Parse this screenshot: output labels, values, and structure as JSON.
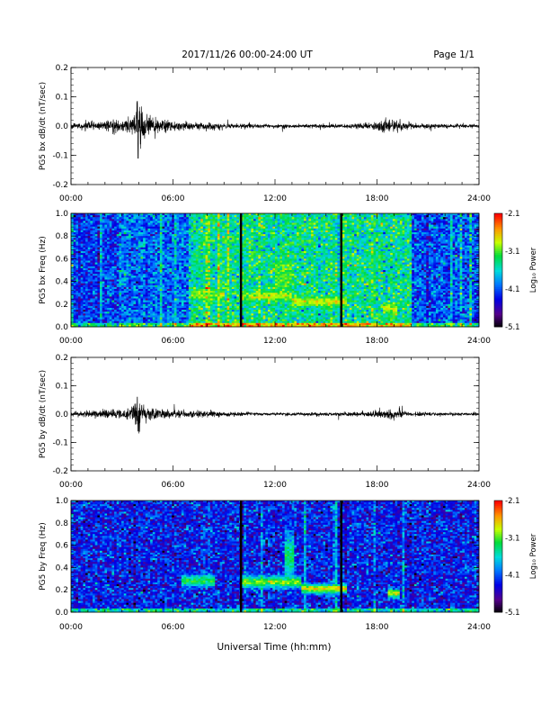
{
  "header": {
    "title": "2017/11/26  00:00-24:00 UT",
    "page_label": "Page 1/1"
  },
  "x_axis_label": "Universal Time (hh:mm)",
  "chart_data": [
    {
      "id": "bx_timeseries",
      "type": "line",
      "ylabel": "PG5 bx dB/dt (nT/sec)",
      "x_ticks": [
        "00:00",
        "06:00",
        "12:00",
        "18:00",
        "24:00"
      ],
      "y_ticks": [
        "0.2",
        "0.1",
        "0.0",
        "-0.1",
        "-0.2"
      ],
      "xlim": [
        0,
        24
      ],
      "ylim": [
        -0.2,
        0.2
      ],
      "series": [
        {
          "x": [
            0,
            1,
            2,
            2.5,
            3,
            3.5,
            3.8,
            4.0,
            4.3,
            5,
            6,
            7,
            8,
            9,
            10,
            12,
            14,
            16,
            17.5,
            18,
            18.5,
            19.5,
            20,
            22,
            24
          ],
          "envelope": [
            0.007,
            0.012,
            0.014,
            0.02,
            0.018,
            0.024,
            0.05,
            0.085,
            0.03,
            0.02,
            0.016,
            0.012,
            0.01,
            0.009,
            0.007,
            0.005,
            0.006,
            0.007,
            0.01,
            0.014,
            0.022,
            0.012,
            0.008,
            0.006,
            0.005
          ],
          "minimum": {
            "x": 3.95,
            "y": -0.11
          },
          "maximum": {
            "x": 3.9,
            "y": 0.085
          }
        }
      ]
    },
    {
      "id": "bx_spectrogram",
      "type": "heatmap",
      "ylabel": "PG5 bx Freq (Hz)",
      "x_ticks": [
        "00:00",
        "06:00",
        "12:00",
        "18:00",
        "24:00"
      ],
      "y_ticks": [
        "1.0",
        "0.8",
        "0.6",
        "0.4",
        "0.2",
        "0.0"
      ],
      "xlim": [
        0,
        24
      ],
      "ylim": [
        0,
        1.0
      ],
      "colorbar": {
        "label": "Log₁₀ Power",
        "ticks": [
          "-2.1",
          "-3.1",
          "-4.1",
          "-5.1"
        ],
        "range": [
          -5.1,
          -2.1
        ],
        "colormap": "rainbow"
      },
      "background_level": [
        {
          "from": 0,
          "to": 3,
          "level": -4.2
        },
        {
          "from": 3,
          "to": 7,
          "level": -4.0
        },
        {
          "from": 7,
          "to": 20,
          "level": -3.4
        },
        {
          "from": 20,
          "to": 24,
          "level": -4.1
        }
      ],
      "enhancements": [
        {
          "t_start": 7,
          "t_end": 9,
          "f_center": 0.28,
          "f_width": 0.05,
          "level": -3.0
        },
        {
          "t_start": 10,
          "t_end": 13,
          "f_center": 0.27,
          "f_width": 0.04,
          "level": -2.9
        },
        {
          "t_start": 13,
          "t_end": 16.2,
          "f_center": 0.22,
          "f_width": 0.04,
          "level": -2.8
        },
        {
          "t_start": 18.3,
          "t_end": 19.2,
          "f_center": 0.16,
          "f_width": 0.04,
          "level": -2.8
        },
        {
          "t_start": 12,
          "t_end": 13,
          "f_center": 0.45,
          "f_width": 0.15,
          "level": -3.1
        }
      ],
      "data_gaps": [
        10.0,
        15.9
      ]
    },
    {
      "id": "by_timeseries",
      "type": "line",
      "ylabel": "PG5 by dB/dt (nT/sec)",
      "x_ticks": [
        "00:00",
        "06:00",
        "12:00",
        "18:00",
        "24:00"
      ],
      "y_ticks": [
        "0.2",
        "0.1",
        "0.0",
        "-0.1",
        "-0.2"
      ],
      "xlim": [
        0,
        24
      ],
      "ylim": [
        -0.2,
        0.2
      ],
      "series": [
        {
          "x": [
            0,
            1,
            2,
            2.5,
            3,
            3.5,
            3.8,
            4.0,
            4.3,
            5,
            6,
            7,
            8,
            9,
            10,
            12,
            14,
            16,
            17.5,
            18,
            18.5,
            19.5,
            20,
            22,
            24
          ],
          "envelope": [
            0.006,
            0.01,
            0.012,
            0.016,
            0.015,
            0.02,
            0.04,
            0.06,
            0.025,
            0.016,
            0.013,
            0.01,
            0.009,
            0.008,
            0.006,
            0.004,
            0.005,
            0.006,
            0.008,
            0.012,
            0.018,
            0.01,
            0.007,
            0.005,
            0.004
          ],
          "minimum": {
            "x": 3.95,
            "y": -0.06
          },
          "maximum": {
            "x": 3.9,
            "y": 0.06
          }
        }
      ]
    },
    {
      "id": "by_spectrogram",
      "type": "heatmap",
      "ylabel": "PG5 by Freq (Hz)",
      "x_ticks": [
        "00:00",
        "06:00",
        "12:00",
        "18:00",
        "24:00"
      ],
      "y_ticks": [
        "1.0",
        "0.8",
        "0.6",
        "0.4",
        "0.2",
        "0.0"
      ],
      "xlim": [
        0,
        24
      ],
      "ylim": [
        0,
        1.0
      ],
      "colorbar": {
        "label": "Log₁₀ Power",
        "ticks": [
          "-2.1",
          "-3.1",
          "-4.1",
          "-5.1"
        ],
        "range": [
          -5.1,
          -2.1
        ],
        "colormap": "rainbow"
      },
      "background_level": [
        {
          "from": 0,
          "to": 24,
          "level": -4.3
        }
      ],
      "enhancements": [
        {
          "t_start": 6.5,
          "t_end": 8.5,
          "f_center": 0.28,
          "f_width": 0.05,
          "level": -3.2
        },
        {
          "t_start": 10,
          "t_end": 13.5,
          "f_center": 0.27,
          "f_width": 0.05,
          "level": -3.0
        },
        {
          "t_start": 13.5,
          "t_end": 16.2,
          "f_center": 0.21,
          "f_width": 0.04,
          "level": -2.7
        },
        {
          "t_start": 12.5,
          "t_end": 13.2,
          "f_center": 0.5,
          "f_width": 0.2,
          "level": -3.3
        },
        {
          "t_start": 18.7,
          "t_end": 19.3,
          "f_center": 0.17,
          "f_width": 0.04,
          "level": -2.8
        }
      ],
      "data_gaps": [
        10.0,
        15.9
      ]
    }
  ]
}
